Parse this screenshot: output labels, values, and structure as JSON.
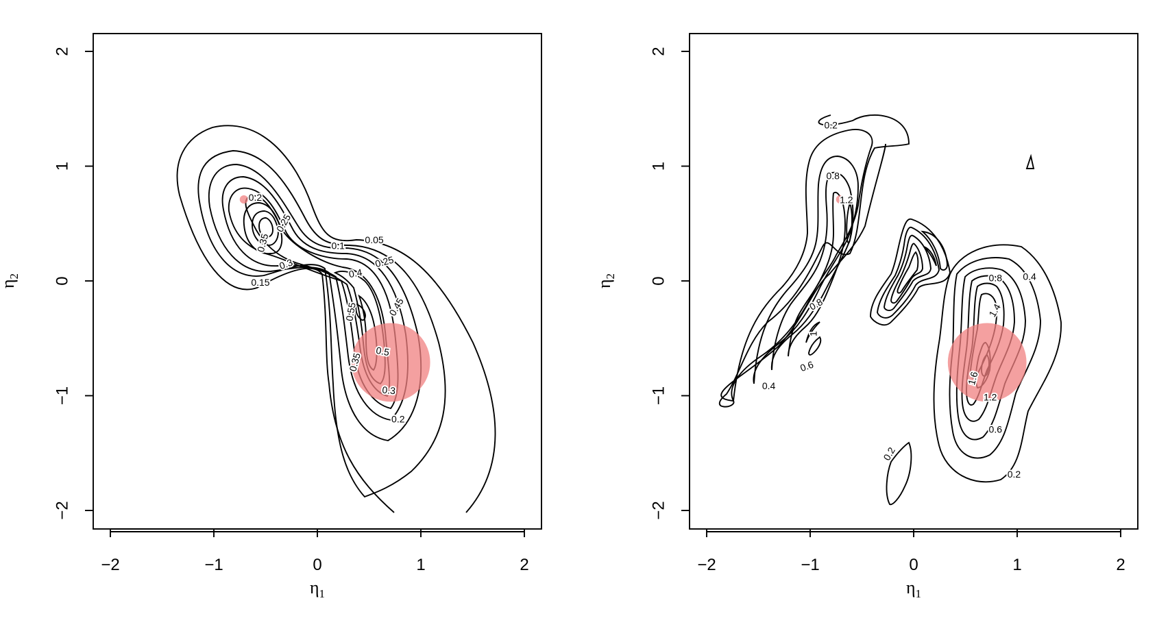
{
  "chart_data": [
    {
      "type": "contour",
      "title": "",
      "xlabel": "η",
      "xlabel_sub": "1",
      "ylabel": "η",
      "ylabel_sub": "2",
      "xlim": [
        -2.17,
        2.17
      ],
      "ylim": [
        -2.17,
        2.17
      ],
      "xticks": [
        -2,
        -1,
        0,
        1,
        2
      ],
      "yticks": [
        -2,
        -1,
        0,
        1,
        2
      ],
      "xtick_labels": [
        "−2",
        "−1",
        "0",
        "1",
        "2"
      ],
      "ytick_labels": [
        "−2",
        "−1",
        "0",
        "1",
        "2"
      ],
      "highlight_circles": [
        {
          "x": -0.71,
          "y": 0.71,
          "r": 0.04,
          "color": "#f08080"
        },
        {
          "x": 0.71,
          "y": -0.71,
          "r": 0.38,
          "color": "#f08080"
        }
      ],
      "contour_labels": [
        {
          "text": "0.2",
          "x": -0.6,
          "y": 0.72,
          "angle": 0
        },
        {
          "text": "0.25",
          "x": -0.32,
          "y": 0.5,
          "angle": -60
        },
        {
          "text": "0.35",
          "x": -0.52,
          "y": 0.33,
          "angle": -75
        },
        {
          "text": "0.3",
          "x": -0.3,
          "y": 0.14,
          "angle": -20
        },
        {
          "text": "0.15",
          "x": -0.55,
          "y": -0.02,
          "angle": 0
        },
        {
          "text": "0.1",
          "x": 0.2,
          "y": 0.3,
          "angle": 0
        },
        {
          "text": "0.05",
          "x": 0.55,
          "y": 0.35,
          "angle": 0
        },
        {
          "text": "0.25",
          "x": 0.65,
          "y": 0.16,
          "angle": -15
        },
        {
          "text": "0.4",
          "x": 0.37,
          "y": 0.06,
          "angle": -10
        },
        {
          "text": "0.45",
          "x": 0.77,
          "y": -0.23,
          "angle": -60
        },
        {
          "text": "0.55",
          "x": 0.33,
          "y": -0.27,
          "angle": -80
        },
        {
          "text": "0.5",
          "x": 0.63,
          "y": -0.62,
          "angle": 10
        },
        {
          "text": "0.35",
          "x": 0.37,
          "y": -0.71,
          "angle": -75
        },
        {
          "text": "0.3",
          "x": 0.69,
          "y": -0.96,
          "angle": 5
        },
        {
          "text": "0.2",
          "x": 0.78,
          "y": -1.21,
          "angle": 0
        }
      ]
    },
    {
      "type": "contour",
      "title": "",
      "xlabel": "η",
      "xlabel_sub": "1",
      "ylabel": "η",
      "ylabel_sub": "2",
      "xlim": [
        -2.17,
        2.17
      ],
      "ylim": [
        -2.17,
        2.17
      ],
      "xticks": [
        -2,
        -1,
        0,
        1,
        2
      ],
      "yticks": [
        -2,
        -1,
        0,
        1,
        2
      ],
      "xtick_labels": [
        "−2",
        "−1",
        "0",
        "1",
        "2"
      ],
      "ytick_labels": [
        "−2",
        "−1",
        "0",
        "1",
        "2"
      ],
      "highlight_circles": [
        {
          "x": -0.71,
          "y": 0.71,
          "r": 0.04,
          "color": "#f08080"
        },
        {
          "x": 0.71,
          "y": -0.71,
          "r": 0.38,
          "color": "#f08080"
        }
      ],
      "contour_labels": [
        {
          "text": "0.2",
          "x": -0.8,
          "y": 1.35,
          "angle": 0
        },
        {
          "text": "0.8",
          "x": -0.78,
          "y": 0.91,
          "angle": 0
        },
        {
          "text": "1.2",
          "x": -0.65,
          "y": 0.7,
          "angle": 0
        },
        {
          "text": "0.8",
          "x": -0.94,
          "y": -0.21,
          "angle": -30
        },
        {
          "text": "1",
          "x": -0.96,
          "y": -0.46,
          "angle": -90
        },
        {
          "text": "0.6",
          "x": -1.03,
          "y": -0.75,
          "angle": -20
        },
        {
          "text": "0.4",
          "x": -1.4,
          "y": -0.92,
          "angle": 0
        },
        {
          "text": "0.8",
          "x": 0.79,
          "y": 0.02,
          "angle": 0
        },
        {
          "text": "0.4",
          "x": 1.12,
          "y": 0.03,
          "angle": 0
        },
        {
          "text": "1.4",
          "x": 0.79,
          "y": -0.26,
          "angle": -60
        },
        {
          "text": "1.6",
          "x": 0.58,
          "y": -0.85,
          "angle": -75
        },
        {
          "text": "1.2",
          "x": 0.74,
          "y": -1.02,
          "angle": 0
        },
        {
          "text": "0.6",
          "x": 0.79,
          "y": -1.3,
          "angle": 0
        },
        {
          "text": "0.2",
          "x": 0.97,
          "y": -1.69,
          "angle": 0
        },
        {
          "text": "0.2",
          "x": -0.23,
          "y": -1.51,
          "angle": -60
        }
      ]
    }
  ]
}
